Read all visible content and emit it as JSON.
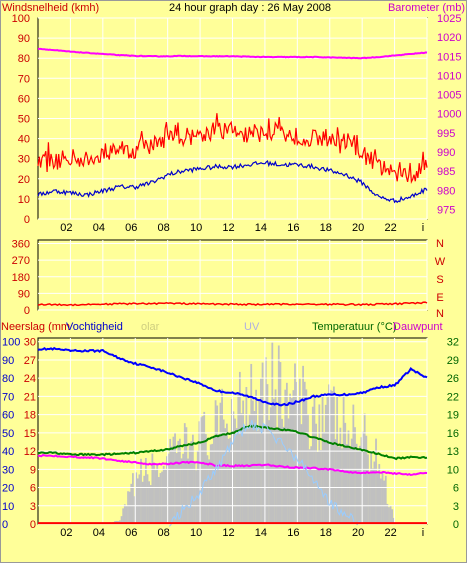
{
  "colors": {
    "background": "#ffff99",
    "plot_background": "#ffff99",
    "grid": "#ffffff",
    "wind": "#ff0000",
    "gust": "#000000",
    "baro": "#ff00ff",
    "wind_avg": "#0000cc",
    "humidity": "#0000ff",
    "temperature": "#008000",
    "dewpoint": "#ff00ff",
    "solar": "#c0c0c0",
    "uv": "#99ccff",
    "rain": "#ff0000",
    "red_text": "#cc0000",
    "magenta_text": "#cc00cc",
    "blue_text": "#0000cc",
    "green_text": "#006600"
  },
  "header": {
    "title": "24 hour graph day : 26 May 2008"
  },
  "chart_data": [
    {
      "type": "line",
      "title": "24 hour graph day : 26 May 2008",
      "ylabel": "Windsnelheid (kmh)",
      "y2label": "Barometer (mb)",
      "ylim": [
        0,
        100
      ],
      "y2lim": [
        972.5,
        1025
      ],
      "y_ticks": [
        0,
        10,
        20,
        30,
        40,
        50,
        60,
        70,
        80,
        90,
        100
      ],
      "y2_ticks": [
        975,
        980,
        985,
        990,
        995,
        1000,
        1005,
        1010,
        1015,
        1020,
        1025
      ],
      "x_ticks": [
        "02",
        "04",
        "06",
        "08",
        "10",
        "12",
        "14",
        "16",
        "18",
        "20",
        "22",
        "i"
      ],
      "x_hours": [
        0,
        1,
        2,
        3,
        4,
        5,
        6,
        7,
        8,
        9,
        10,
        11,
        12,
        13,
        14,
        15,
        16,
        17,
        18,
        19,
        20,
        21,
        22,
        23,
        24
      ],
      "grid": true,
      "series": [
        {
          "key": "wind_gust",
          "axis": "left",
          "color": "wind",
          "values": [
            30,
            28,
            31,
            29,
            33,
            35,
            34,
            37,
            40,
            41,
            42,
            44,
            43,
            42,
            44,
            43,
            41,
            40,
            39,
            37,
            33,
            26,
            22,
            21,
            29
          ]
        },
        {
          "key": "wind_avg",
          "axis": "left",
          "color": "wind_avg",
          "values": [
            12,
            14,
            13,
            12,
            14,
            16,
            16,
            18,
            22,
            24,
            25,
            26,
            26,
            27,
            28,
            27,
            27,
            26,
            24,
            22,
            18,
            11,
            9,
            11,
            15
          ]
        },
        {
          "key": "barometer",
          "axis": "right",
          "color": "baro",
          "values": [
            1017.0,
            1016.6,
            1016.2,
            1015.9,
            1015.6,
            1015.3,
            1015.1,
            1015.0,
            1015.0,
            1015.1,
            1015.0,
            1015.0,
            1015.0,
            1014.9,
            1014.8,
            1014.8,
            1014.8,
            1014.8,
            1014.7,
            1014.6,
            1014.5,
            1014.8,
            1015.2,
            1015.6,
            1016.0
          ]
        }
      ]
    },
    {
      "type": "line",
      "ylabel_right": [
        "N",
        "W",
        "S",
        "E",
        "N"
      ],
      "ylim": [
        0,
        360
      ],
      "y_ticks": [
        0,
        90,
        180,
        270,
        360
      ],
      "x_ticks": [
        "02",
        "04",
        "06",
        "08",
        "10",
        "12",
        "14",
        "16",
        "18",
        "20",
        "22",
        "i"
      ],
      "x_hours": [
        0,
        2,
        4,
        6,
        8,
        10,
        12,
        14,
        16,
        18,
        20,
        22,
        24
      ],
      "series": [
        {
          "key": "wind_direction",
          "axis": "left",
          "color": "wind",
          "values": [
            30,
            28,
            32,
            34,
            36,
            33,
            31,
            30,
            32,
            31,
            29,
            33,
            40
          ]
        }
      ]
    },
    {
      "type": "line",
      "labels": {
        "rain": "Neerslag (mm",
        "humidity": "Vochtigheid",
        "solar": "olar",
        "uv": "UV",
        "temperature": "Temperatuur (°C)",
        "dewpoint": "Dauwpunt"
      },
      "left_rain_ticks": [
        0,
        3,
        6,
        9,
        12,
        15,
        18,
        21,
        24,
        27,
        30
      ],
      "left_humidity_ticks": [
        0,
        10,
        20,
        30,
        40,
        50,
        60,
        70,
        80,
        90,
        100
      ],
      "right_ticks": [
        0,
        3,
        6,
        10,
        13,
        16,
        19,
        22,
        26,
        29,
        32
      ],
      "ylim_humidity": [
        0,
        100
      ],
      "ylim_temp": [
        0,
        32
      ],
      "x_ticks": [
        "02",
        "04",
        "06",
        "08",
        "10",
        "12",
        "14",
        "16",
        "18",
        "20",
        "22",
        "i"
      ],
      "x_hours": [
        0,
        1,
        2,
        3,
        4,
        5,
        6,
        7,
        8,
        9,
        10,
        11,
        12,
        13,
        14,
        15,
        16,
        17,
        18,
        19,
        20,
        21,
        22,
        23,
        24
      ],
      "series": [
        {
          "key": "humidity",
          "axis": "humidity",
          "color": "humidity",
          "values": [
            96,
            96,
            95,
            95,
            95,
            91,
            88,
            86,
            83,
            80,
            77,
            73,
            72,
            70,
            67,
            65,
            67,
            70,
            71,
            71,
            72,
            75,
            76,
            85,
            80
          ]
        },
        {
          "key": "temperature",
          "axis": "temp",
          "color": "temperature",
          "values": [
            12.5,
            12.5,
            12.2,
            12.2,
            12.2,
            12.3,
            12.5,
            12.8,
            13.1,
            13.8,
            14.3,
            15.4,
            16.0,
            17.2,
            17.0,
            16.6,
            16.2,
            15.2,
            14.3,
            13.6,
            13.0,
            12.3,
            11.5,
            11.7,
            11.7
          ]
        },
        {
          "key": "dewpoint",
          "axis": "temp",
          "color": "dewpoint",
          "values": [
            12.0,
            12.0,
            11.8,
            11.7,
            11.5,
            11.1,
            10.8,
            10.5,
            10.6,
            10.8,
            10.8,
            10.3,
            10.2,
            10.2,
            10.4,
            10.1,
            9.9,
            9.8,
            9.6,
            9.2,
            9.0,
            9.1,
            8.9,
            8.7,
            8.9
          ]
        },
        {
          "key": "solar",
          "axis": "humidity",
          "color": "solar",
          "values": [
            0,
            0,
            0,
            0,
            0,
            2,
            30,
            35,
            40,
            50,
            55,
            60,
            75,
            90,
            95,
            85,
            78,
            72,
            70,
            60,
            55,
            40,
            0,
            0,
            0
          ]
        },
        {
          "key": "uv",
          "axis": "humidity",
          "color": "uv",
          "values": [
            0,
            0,
            0,
            0,
            0,
            0,
            0,
            0,
            0,
            8,
            18,
            30,
            45,
            55,
            52,
            45,
            35,
            25,
            12,
            4,
            0,
            0,
            0,
            0,
            0
          ]
        },
        {
          "key": "rain",
          "axis": "humidity",
          "color": "rain",
          "values": [
            0.5,
            0.5,
            0.5,
            0.5,
            0.5,
            0.5,
            0.5,
            0.5,
            0.5,
            0.5,
            0.5,
            0.5,
            0.5,
            0.5,
            0.5,
            0.5,
            0.5,
            0.5,
            0.5,
            0.5,
            0.5,
            0.5,
            0.5,
            0.5,
            0.5
          ]
        }
      ]
    }
  ]
}
